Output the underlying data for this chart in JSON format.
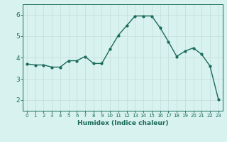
{
  "x": [
    0,
    1,
    2,
    3,
    4,
    5,
    6,
    7,
    8,
    9,
    10,
    11,
    12,
    13,
    14,
    15,
    16,
    17,
    18,
    19,
    20,
    21,
    22,
    23
  ],
  "y": [
    3.7,
    3.65,
    3.65,
    3.55,
    3.55,
    3.85,
    3.85,
    4.05,
    3.72,
    3.72,
    4.4,
    5.05,
    5.5,
    5.95,
    5.95,
    5.95,
    5.4,
    4.75,
    4.05,
    4.3,
    4.45,
    4.15,
    3.6,
    2.05
  ],
  "line_color": "#1a6b5a",
  "marker": "o",
  "markersize": 2.0,
  "linewidth": 1.0,
  "xlabel": "Humidex (Indice chaleur)",
  "xlim": [
    -0.5,
    23.5
  ],
  "ylim": [
    1.5,
    6.5
  ],
  "yticks": [
    2,
    3,
    4,
    5,
    6
  ],
  "xticks": [
    0,
    1,
    2,
    3,
    4,
    5,
    6,
    7,
    8,
    9,
    10,
    11,
    12,
    13,
    14,
    15,
    16,
    17,
    18,
    19,
    20,
    21,
    22,
    23
  ],
  "xtick_labels": [
    "0",
    "1",
    "2",
    "3",
    "4",
    "5",
    "6",
    "7",
    "8",
    "9",
    "10",
    "11",
    "12",
    "13",
    "14",
    "15",
    "16",
    "17",
    "18",
    "19",
    "20",
    "21",
    "22",
    "23"
  ],
  "bg_color": "#d8f2f0",
  "grid_color": "#c8dede",
  "font_color": "#1a6b5a",
  "xlabel_fontsize": 6.5,
  "xtick_fontsize": 5.0,
  "ytick_fontsize": 6.5
}
